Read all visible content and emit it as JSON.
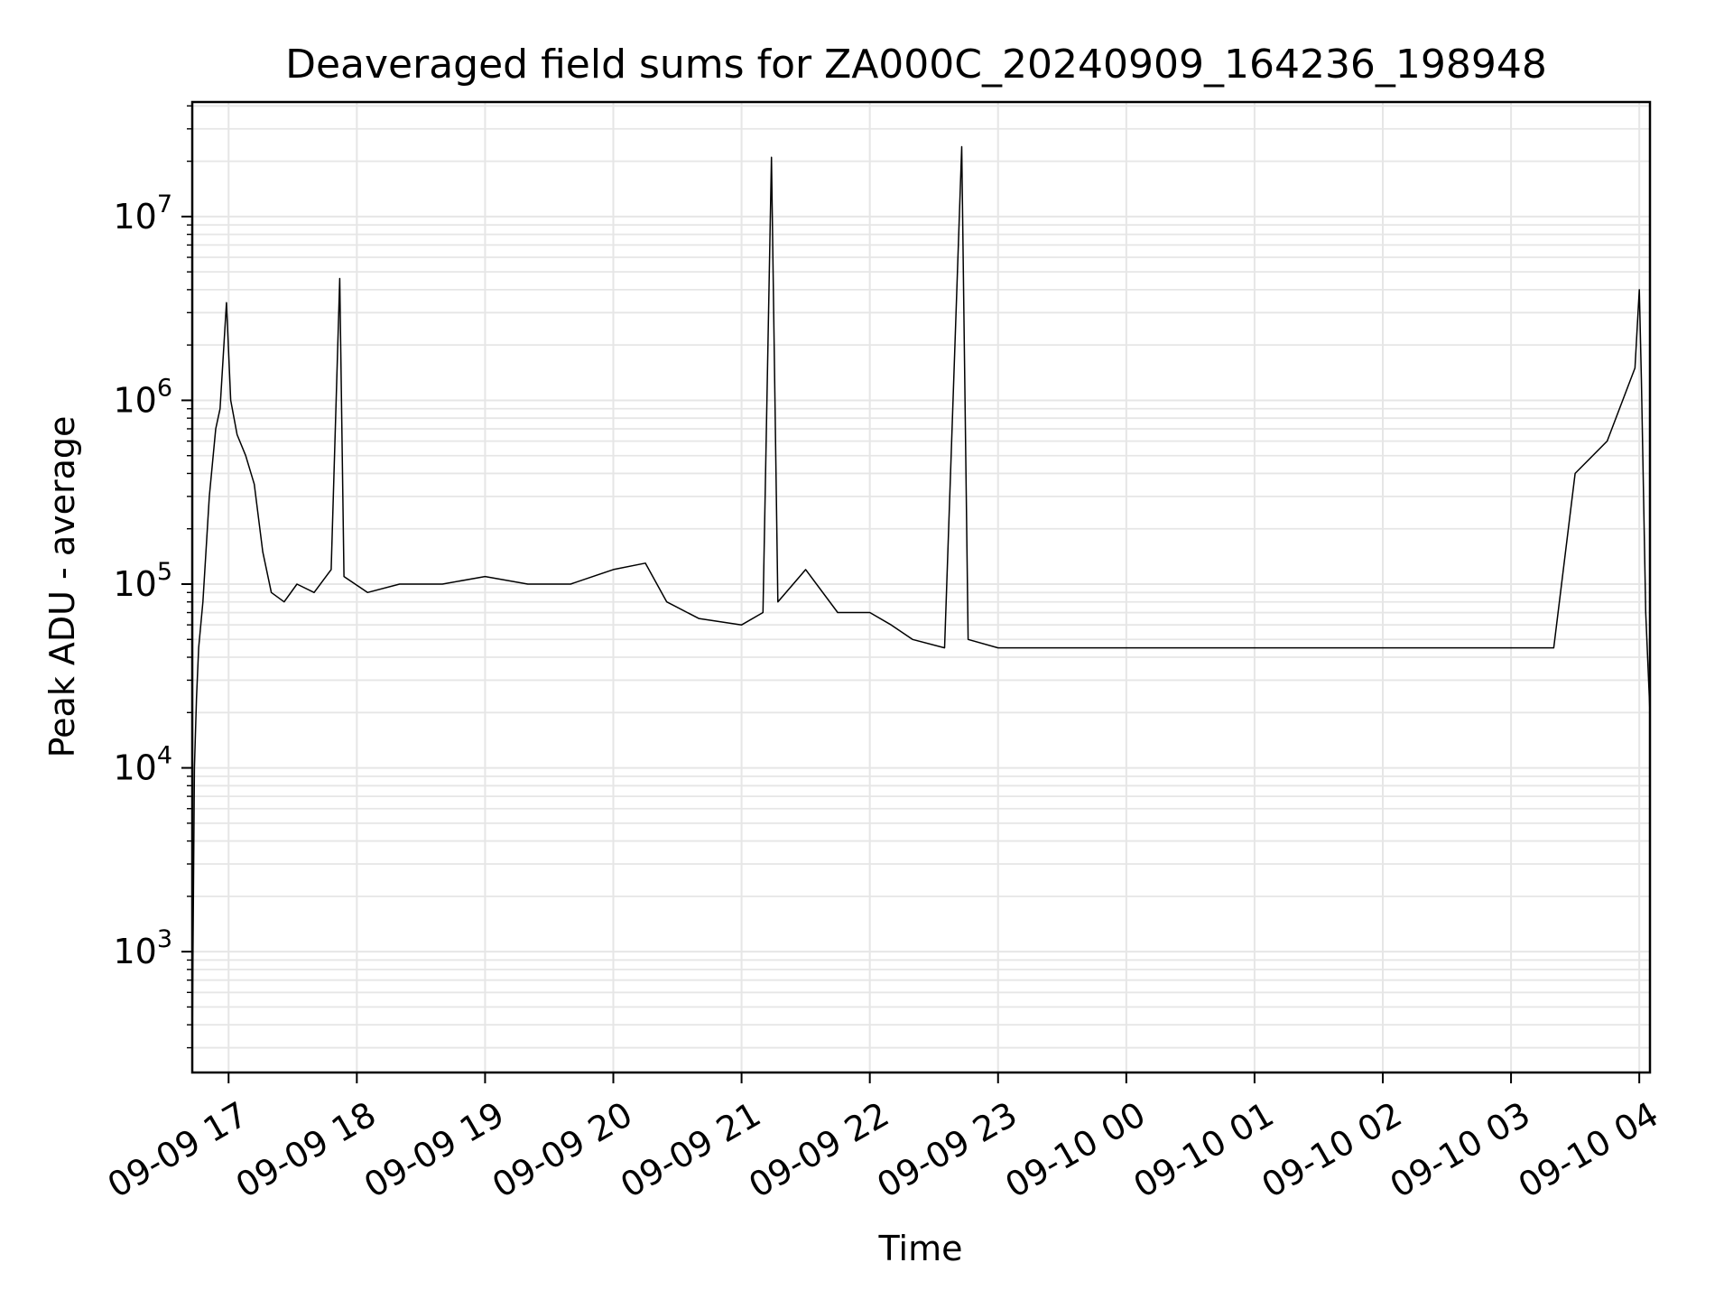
{
  "chart_data": {
    "type": "line",
    "title": "Deaveraged field sums for ZA000C_20240909_164236_198948",
    "xlabel": "Time",
    "ylabel": "Peak ADU - average",
    "yscale": "log",
    "ylim": [
      220,
      42000000
    ],
    "xlim": [
      "2024-09-09 16:43",
      "2024-09-10 04:05"
    ],
    "grid": true,
    "grid_color": "#e6e6e6",
    "line_color": "#000000",
    "x_ticks": [
      {
        "t": "2024-09-09 17:00",
        "label": "09-09 17"
      },
      {
        "t": "2024-09-09 18:00",
        "label": "09-09 18"
      },
      {
        "t": "2024-09-09 19:00",
        "label": "09-09 19"
      },
      {
        "t": "2024-09-09 20:00",
        "label": "09-09 20"
      },
      {
        "t": "2024-09-09 21:00",
        "label": "09-09 21"
      },
      {
        "t": "2024-09-09 22:00",
        "label": "09-09 22"
      },
      {
        "t": "2024-09-09 23:00",
        "label": "09-09 23"
      },
      {
        "t": "2024-09-10 00:00",
        "label": "09-10 00"
      },
      {
        "t": "2024-09-10 01:00",
        "label": "09-10 01"
      },
      {
        "t": "2024-09-10 02:00",
        "label": "09-10 02"
      },
      {
        "t": "2024-09-10 03:00",
        "label": "09-10 03"
      },
      {
        "t": "2024-09-10 04:00",
        "label": "09-10 04"
      }
    ],
    "y_ticks": [
      {
        "value": 1000,
        "base": "10",
        "exp": "3"
      },
      {
        "value": 10000,
        "base": "10",
        "exp": "4"
      },
      {
        "value": 100000,
        "base": "10",
        "exp": "5"
      },
      {
        "value": 1000000,
        "base": "10",
        "exp": "6"
      },
      {
        "value": 10000000,
        "base": "10",
        "exp": "7"
      }
    ],
    "series": [
      {
        "points": [
          [
            "2024-09-09 16:43",
            300
          ],
          [
            "2024-09-09 16:44",
            10000
          ],
          [
            "2024-09-09 16:45",
            24000
          ],
          [
            "2024-09-09 16:46",
            45000
          ],
          [
            "2024-09-09 16:48",
            80000
          ],
          [
            "2024-09-09 16:51",
            300000
          ],
          [
            "2024-09-09 16:54",
            700000
          ],
          [
            "2024-09-09 16:56",
            900000
          ],
          [
            "2024-09-09 16:59",
            3400000
          ],
          [
            "2024-09-09 17:01",
            1000000
          ],
          [
            "2024-09-09 17:04",
            650000
          ],
          [
            "2024-09-09 17:08",
            500000
          ],
          [
            "2024-09-09 17:12",
            350000
          ],
          [
            "2024-09-09 17:16",
            150000
          ],
          [
            "2024-09-09 17:20",
            90000
          ],
          [
            "2024-09-09 17:26",
            80000
          ],
          [
            "2024-09-09 17:32",
            100000
          ],
          [
            "2024-09-09 17:40",
            90000
          ],
          [
            "2024-09-09 17:48",
            120000
          ],
          [
            "2024-09-09 17:52",
            4600000
          ],
          [
            "2024-09-09 17:54",
            110000
          ],
          [
            "2024-09-09 18:05",
            90000
          ],
          [
            "2024-09-09 18:20",
            100000
          ],
          [
            "2024-09-09 18:40",
            100000
          ],
          [
            "2024-09-09 19:00",
            110000
          ],
          [
            "2024-09-09 19:20",
            100000
          ],
          [
            "2024-09-09 19:40",
            100000
          ],
          [
            "2024-09-09 20:00",
            120000
          ],
          [
            "2024-09-09 20:15",
            130000
          ],
          [
            "2024-09-09 20:25",
            80000
          ],
          [
            "2024-09-09 20:40",
            65000
          ],
          [
            "2024-09-09 21:00",
            60000
          ],
          [
            "2024-09-09 21:10",
            70000
          ],
          [
            "2024-09-09 21:14",
            21000000
          ],
          [
            "2024-09-09 21:17",
            80000
          ],
          [
            "2024-09-09 21:30",
            120000
          ],
          [
            "2024-09-09 21:45",
            70000
          ],
          [
            "2024-09-09 22:00",
            70000
          ],
          [
            "2024-09-09 22:10",
            60000
          ],
          [
            "2024-09-09 22:20",
            50000
          ],
          [
            "2024-09-09 22:35",
            45000
          ],
          [
            "2024-09-09 22:43",
            24000000
          ],
          [
            "2024-09-09 22:46",
            50000
          ],
          [
            "2024-09-09 23:00",
            45000
          ],
          [
            "2024-09-10 00:00",
            45000
          ],
          [
            "2024-09-10 01:00",
            45000
          ],
          [
            "2024-09-10 02:00",
            45000
          ],
          [
            "2024-09-10 03:00",
            45000
          ],
          [
            "2024-09-10 03:20",
            45000
          ],
          [
            "2024-09-10 03:30",
            400000
          ],
          [
            "2024-09-10 03:45",
            600000
          ],
          [
            "2024-09-10 03:58",
            1500000
          ],
          [
            "2024-09-10 04:00",
            4000000
          ],
          [
            "2024-09-10 04:01",
            1300000
          ],
          [
            "2024-09-10 04:03",
            70000
          ],
          [
            "2024-09-10 04:05",
            20000
          ]
        ]
      }
    ]
  }
}
